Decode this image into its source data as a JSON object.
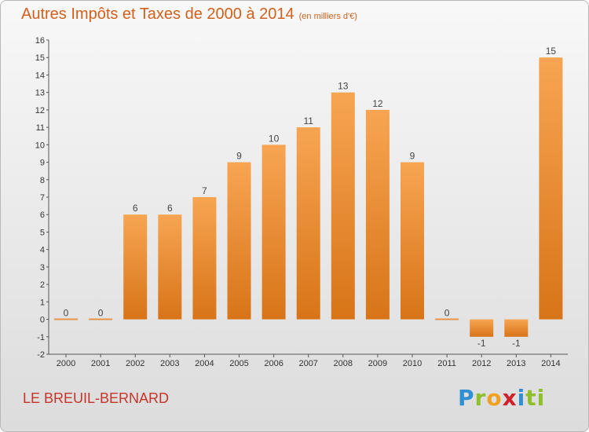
{
  "title": "Autres Impôts et Taxes de 2000 à 2014",
  "unit": "(en milliers d'€)",
  "commune": "LE BREUIL-BERNARD",
  "logo": {
    "text": "Proxiti",
    "letters": [
      "P",
      "r",
      "o",
      "x",
      "i",
      "ti"
    ]
  },
  "colors": {
    "title": "#d2601c",
    "bar_light": "#f7a552",
    "bar_dark": "#d87418",
    "commune": "#c6352a"
  },
  "chart_data": {
    "type": "bar",
    "categories": [
      "2000",
      "2001",
      "2002",
      "2003",
      "2004",
      "2005",
      "2006",
      "2007",
      "2008",
      "2009",
      "2010",
      "2011",
      "2012",
      "2013",
      "2014"
    ],
    "values": [
      0,
      0,
      6,
      6,
      7,
      9,
      10,
      11,
      13,
      12,
      9,
      0,
      -1,
      -1,
      15
    ],
    "value_labels": [
      "0",
      "0",
      "6",
      "6",
      "7",
      "9",
      "10",
      "11",
      "13",
      "12",
      "9",
      "0",
      "-1",
      "-1",
      "15"
    ],
    "yticks": [
      "-2",
      "-1",
      "0",
      "1",
      "2",
      "3",
      "4",
      "5",
      "6",
      "7",
      "8",
      "9",
      "10",
      "11",
      "12",
      "13",
      "14",
      "15",
      "16"
    ],
    "ylim": [
      -2,
      16
    ],
    "grid": false
  }
}
